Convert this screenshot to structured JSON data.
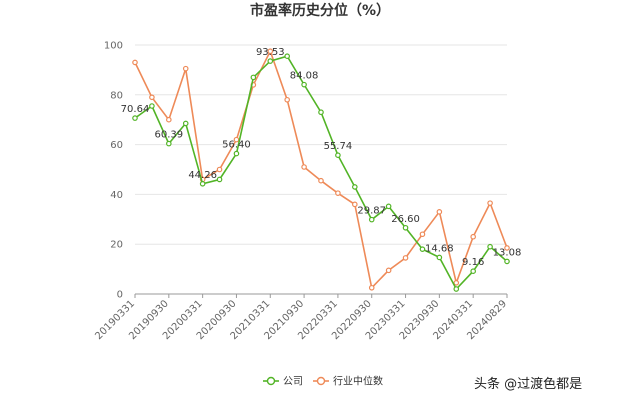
{
  "chart_data": {
    "type": "line",
    "title": "市盈率历史分位（%）",
    "xlabel": "",
    "ylabel": "",
    "ylim": [
      0,
      100
    ],
    "yticks": [
      0,
      20,
      40,
      60,
      80,
      100
    ],
    "grid": true,
    "legend_position": "bottom",
    "x_tick_labels": [
      "20190331",
      "20190930",
      "20200331",
      "20200930",
      "20210331",
      "20210930",
      "20220331",
      "20220930",
      "20230331",
      "20230930",
      "20240331",
      "20240829"
    ],
    "series": [
      {
        "name": "公司",
        "color": "#52b426",
        "values": [
          70.64,
          75.5,
          60.39,
          68.5,
          44.26,
          46,
          56.4,
          87,
          93.53,
          95.5,
          84.08,
          73,
          55.74,
          43,
          29.87,
          35.2,
          26.6,
          18,
          14.68,
          2,
          9.16,
          19,
          13.08
        ],
        "labels": [
          "70.64",
          "",
          "60.39",
          "",
          "44.26",
          "",
          "56.40",
          "",
          "93.53",
          "",
          "84.08",
          "",
          "55.74",
          "",
          "29.87",
          "",
          "26.60",
          "",
          "14.68",
          "",
          "9.16",
          "",
          "13.08"
        ]
      },
      {
        "name": "行业中位数",
        "color": "#ee8a58",
        "values": [
          93,
          79,
          70,
          90.5,
          46,
          50,
          62,
          84,
          97.5,
          78,
          51,
          45.5,
          40.5,
          36,
          2.5,
          9.5,
          14.5,
          24,
          33,
          4.5,
          23,
          36.5,
          18.5
        ]
      }
    ]
  },
  "watermark": "头条 @过渡色都是"
}
